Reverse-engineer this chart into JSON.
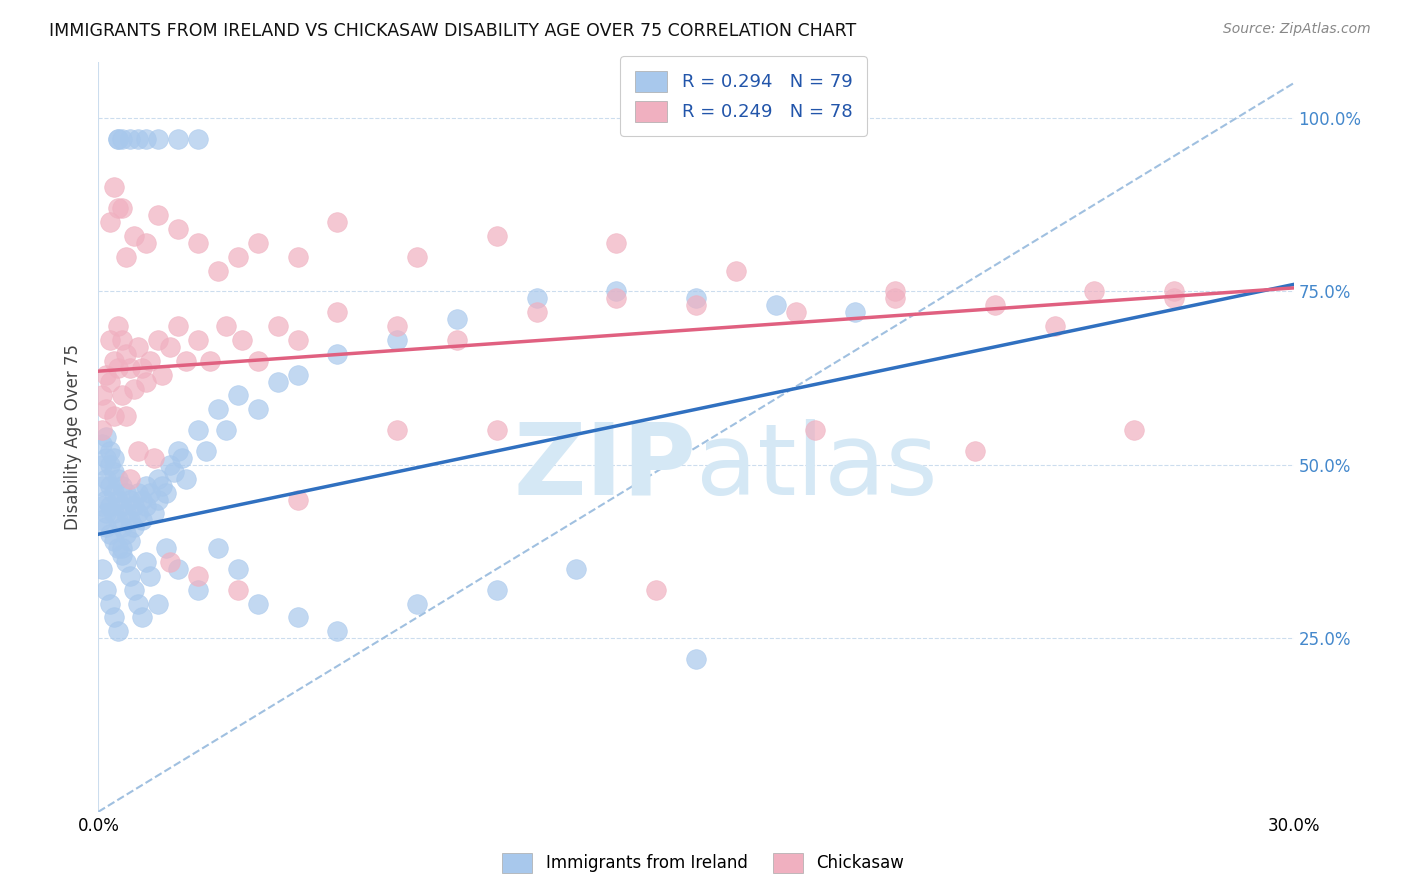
{
  "title": "IMMIGRANTS FROM IRELAND VS CHICKASAW DISABILITY AGE OVER 75 CORRELATION CHART",
  "source": "Source: ZipAtlas.com",
  "ylabel": "Disability Age Over 75",
  "ytick_labels": [
    "25.0%",
    "50.0%",
    "75.0%",
    "100.0%"
  ],
  "ytick_positions": [
    0.25,
    0.5,
    0.75,
    1.0
  ],
  "legend_blue_label": "R = 0.294   N = 79",
  "legend_pink_label": "R = 0.249   N = 78",
  "legend_blue_r": 0.294,
  "legend_blue_n": 79,
  "legend_pink_r": 0.249,
  "legend_pink_n": 78,
  "blue_color": "#A8C8EC",
  "pink_color": "#F0B0C0",
  "blue_line_color": "#3070C0",
  "pink_line_color": "#E06080",
  "dashed_line_color": "#A0C0E0",
  "watermark_color": "#D5E8F5",
  "bottom_legend_blue": "Immigrants from Ireland",
  "bottom_legend_pink": "Chickasaw",
  "xmin": 0.0,
  "xmax": 0.3,
  "ymin": 0.0,
  "ymax": 1.05,
  "blue_trend_x0": 0.0,
  "blue_trend_y0": 0.4,
  "blue_trend_x1": 0.3,
  "blue_trend_y1": 0.76,
  "pink_trend_x0": 0.0,
  "pink_trend_y0": 0.635,
  "pink_trend_x1": 0.3,
  "pink_trend_y1": 0.755,
  "blue_x": [
    0.001,
    0.001,
    0.001,
    0.001,
    0.001,
    0.002,
    0.002,
    0.002,
    0.002,
    0.002,
    0.002,
    0.003,
    0.003,
    0.003,
    0.003,
    0.003,
    0.004,
    0.004,
    0.004,
    0.004,
    0.004,
    0.005,
    0.005,
    0.005,
    0.005,
    0.006,
    0.006,
    0.006,
    0.006,
    0.007,
    0.007,
    0.007,
    0.008,
    0.008,
    0.008,
    0.009,
    0.009,
    0.01,
    0.01,
    0.011,
    0.011,
    0.012,
    0.012,
    0.013,
    0.014,
    0.015,
    0.015,
    0.016,
    0.017,
    0.018,
    0.019,
    0.02,
    0.021,
    0.022,
    0.025,
    0.027,
    0.03,
    0.032,
    0.035,
    0.04,
    0.045,
    0.05,
    0.06,
    0.075,
    0.09,
    0.11,
    0.13,
    0.15,
    0.17,
    0.19,
    0.005,
    0.005,
    0.006,
    0.008,
    0.01,
    0.012,
    0.015,
    0.02,
    0.025
  ],
  "blue_y": [
    0.47,
    0.5,
    0.53,
    0.44,
    0.42,
    0.48,
    0.51,
    0.54,
    0.45,
    0.43,
    0.41,
    0.5,
    0.47,
    0.44,
    0.52,
    0.4,
    0.49,
    0.46,
    0.43,
    0.51,
    0.39,
    0.48,
    0.45,
    0.42,
    0.38,
    0.47,
    0.44,
    0.41,
    0.37,
    0.46,
    0.43,
    0.4,
    0.45,
    0.42,
    0.39,
    0.44,
    0.41,
    0.46,
    0.43,
    0.45,
    0.42,
    0.47,
    0.44,
    0.46,
    0.43,
    0.48,
    0.45,
    0.47,
    0.46,
    0.5,
    0.49,
    0.52,
    0.51,
    0.48,
    0.55,
    0.52,
    0.58,
    0.55,
    0.6,
    0.58,
    0.62,
    0.63,
    0.66,
    0.68,
    0.71,
    0.74,
    0.75,
    0.74,
    0.73,
    0.72,
    0.97,
    0.97,
    0.97,
    0.97,
    0.97,
    0.97,
    0.97,
    0.97,
    0.97
  ],
  "blue_low_x": [
    0.001,
    0.002,
    0.003,
    0.004,
    0.005,
    0.006,
    0.007,
    0.008,
    0.009,
    0.01,
    0.011,
    0.012,
    0.013,
    0.015,
    0.017,
    0.02,
    0.025,
    0.03,
    0.035,
    0.04,
    0.05,
    0.06,
    0.08,
    0.1,
    0.12,
    0.15
  ],
  "blue_low_y": [
    0.35,
    0.32,
    0.3,
    0.28,
    0.26,
    0.38,
    0.36,
    0.34,
    0.32,
    0.3,
    0.28,
    0.36,
    0.34,
    0.3,
    0.38,
    0.35,
    0.32,
    0.38,
    0.35,
    0.3,
    0.28,
    0.26,
    0.3,
    0.32,
    0.35,
    0.22
  ],
  "pink_x": [
    0.001,
    0.001,
    0.002,
    0.002,
    0.003,
    0.003,
    0.004,
    0.004,
    0.005,
    0.005,
    0.006,
    0.006,
    0.007,
    0.007,
    0.008,
    0.009,
    0.01,
    0.011,
    0.012,
    0.013,
    0.015,
    0.016,
    0.018,
    0.02,
    0.022,
    0.025,
    0.028,
    0.032,
    0.036,
    0.04,
    0.045,
    0.05,
    0.06,
    0.075,
    0.09,
    0.11,
    0.13,
    0.15,
    0.175,
    0.2,
    0.225,
    0.25,
    0.27,
    0.007,
    0.009,
    0.012,
    0.015,
    0.02,
    0.025,
    0.03,
    0.035,
    0.04,
    0.05,
    0.06,
    0.08,
    0.1,
    0.13,
    0.16,
    0.2,
    0.24,
    0.27,
    0.003,
    0.004,
    0.005,
    0.006,
    0.008,
    0.01,
    0.014,
    0.018,
    0.025,
    0.035,
    0.05,
    0.075,
    0.1,
    0.14,
    0.18,
    0.22,
    0.26
  ],
  "pink_y": [
    0.6,
    0.55,
    0.63,
    0.58,
    0.68,
    0.62,
    0.65,
    0.57,
    0.7,
    0.64,
    0.68,
    0.6,
    0.66,
    0.57,
    0.64,
    0.61,
    0.67,
    0.64,
    0.62,
    0.65,
    0.68,
    0.63,
    0.67,
    0.7,
    0.65,
    0.68,
    0.65,
    0.7,
    0.68,
    0.65,
    0.7,
    0.68,
    0.72,
    0.7,
    0.68,
    0.72,
    0.74,
    0.73,
    0.72,
    0.74,
    0.73,
    0.75,
    0.74,
    0.8,
    0.83,
    0.82,
    0.86,
    0.84,
    0.82,
    0.78,
    0.8,
    0.82,
    0.8,
    0.85,
    0.8,
    0.83,
    0.82,
    0.78,
    0.75,
    0.7,
    0.75,
    0.85,
    0.9,
    0.87,
    0.87,
    0.48,
    0.52,
    0.51,
    0.36,
    0.34,
    0.32,
    0.45,
    0.55,
    0.55,
    0.32,
    0.55,
    0.52,
    0.55
  ]
}
